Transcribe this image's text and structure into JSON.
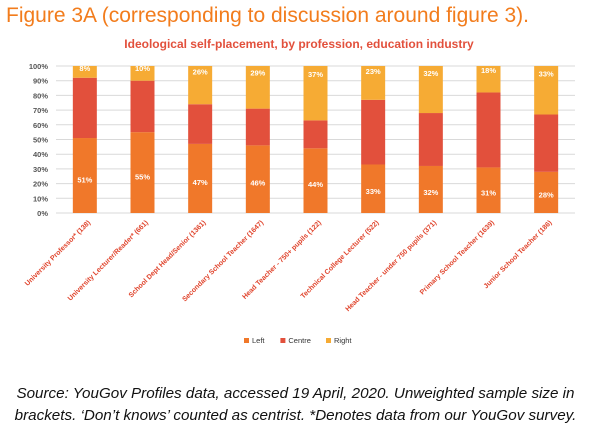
{
  "heading": "Figure 3A (corresponding to discussion around figure 3).",
  "note": "Source: YouGov Profiles data, accessed 19 April, 2020. Unweighted sample size in brackets. ‘Don’t knows’ counted as centrist. *Denotes data from our YouGov survey.",
  "colors": {
    "heading": "#f27c1c",
    "left": "#f0782a",
    "centre": "#e2503c",
    "right": "#f6ab34"
  },
  "chart_data": {
    "type": "bar",
    "stacked": true,
    "percent": true,
    "title": "Ideological self-placement, by profession, education industry",
    "xlabel": "",
    "ylabel": "",
    "ylim": [
      0,
      100
    ],
    "y_ticks": [
      "0%",
      "10%",
      "20%",
      "30%",
      "40%",
      "50%",
      "60%",
      "70%",
      "80%",
      "90%",
      "100%"
    ],
    "grid": true,
    "legend_position": "bottom",
    "categories": [
      "University Professor* (138)",
      "University Lecturer/Reader* (661)",
      "School Dept Head/Senior (1361)",
      "Secondary School Teacher (1647)",
      "Head Teacher - 750+ pupils (122)",
      "Technical College Lecturer (522)",
      "Head Teacher - under 750 pupils (371)",
      "Primary School Teacher (1639)",
      "Junior School Teacher (186)"
    ],
    "series": [
      {
        "name": "Left",
        "color": "#f0782a",
        "values": [
          51,
          55,
          47,
          46,
          44,
          33,
          32,
          31,
          28
        ],
        "labels": [
          "51%",
          "55%",
          "47%",
          "46%",
          "44%",
          "33%",
          "32%",
          "31%",
          "28%"
        ]
      },
      {
        "name": "Centre",
        "color": "#e2503c",
        "values": [
          41,
          35,
          27,
          25,
          19,
          44,
          36,
          51,
          39
        ],
        "labels": null
      },
      {
        "name": "Right",
        "color": "#f6ab34",
        "values": [
          8,
          10,
          26,
          29,
          37,
          23,
          32,
          18,
          33
        ],
        "labels": [
          "8%",
          "10%",
          "26%",
          "29%",
          "37%",
          "23%",
          "32%",
          "18%",
          "33%"
        ]
      }
    ]
  }
}
